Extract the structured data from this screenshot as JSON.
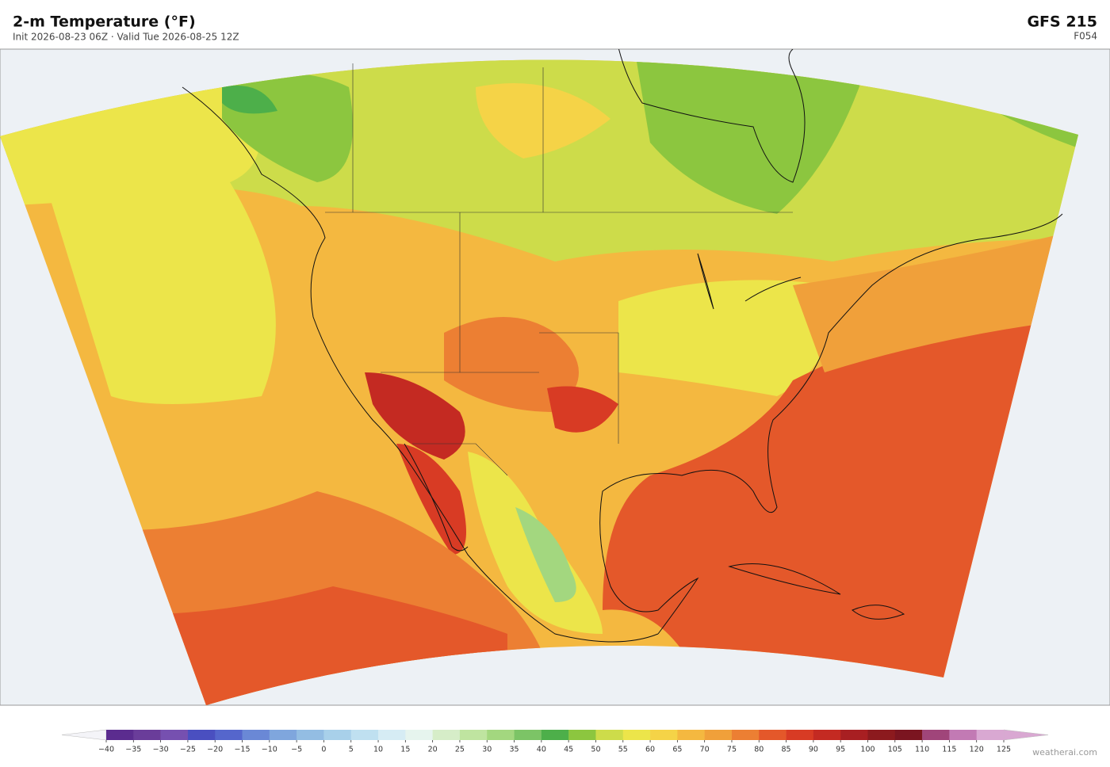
{
  "header": {
    "title": "2-m Temperature  (°F)",
    "subtitle": "Init 2026-08-23 06Z  ·  Valid Tue 2026-08-25 12Z",
    "model": "GFS  215",
    "forecast_hour": "F054"
  },
  "colorbar": {
    "ticks": [
      {
        "value": -40,
        "label": "−40"
      },
      {
        "value": -35,
        "label": "−35"
      },
      {
        "value": -30,
        "label": "−30"
      },
      {
        "value": -25,
        "label": "−25"
      },
      {
        "value": -20,
        "label": "−20"
      },
      {
        "value": -15,
        "label": "−15"
      },
      {
        "value": -10,
        "label": "−10"
      },
      {
        "value": -5,
        "label": "−5"
      },
      0,
      5,
      10,
      15,
      20,
      25,
      30,
      35,
      40,
      45,
      50,
      55,
      60,
      65,
      70,
      75,
      80,
      85,
      90,
      95,
      100,
      105,
      110,
      115,
      120,
      125
    ],
    "colors": [
      "#5b2c8f",
      "#6a3d9a",
      "#7650b0",
      "#4a4fc0",
      "#5566cc",
      "#6a88d6",
      "#7fa6dd",
      "#93bde3",
      "#a8d0ea",
      "#bfe0f0",
      "#d6ecf4",
      "#e6f4ee",
      "#d6edc8",
      "#bfe4a0",
      "#a3d77f",
      "#7cc466",
      "#4daf4a",
      "#8cc63f",
      "#cddc4a",
      "#ece54a",
      "#f5d347",
      "#f4b840",
      "#f0a03a",
      "#ec7f33",
      "#e4582a",
      "#d83b24",
      "#c42a22",
      "#a81f22",
      "#8c1a1e",
      "#7b1520",
      "#a0457a",
      "#c27ab4",
      "#d9a8d2"
    ],
    "under_color": "#f4f4f8",
    "over_color": "#d9a8d2"
  },
  "watermark": "weatherai.com"
}
